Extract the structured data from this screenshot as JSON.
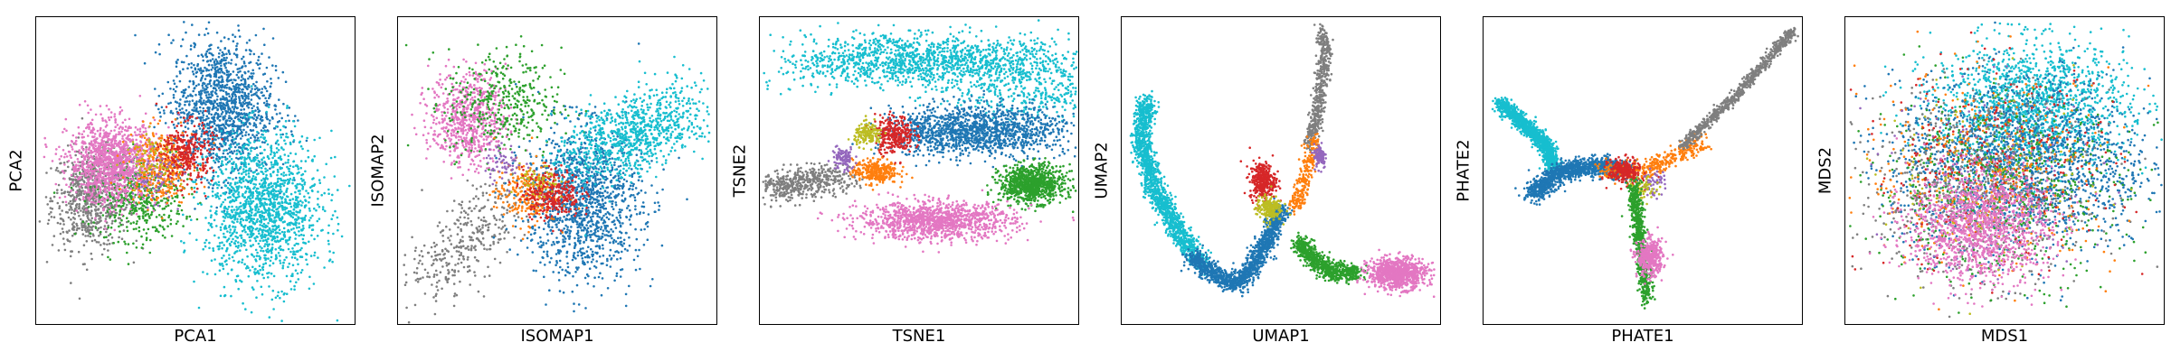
{
  "figure": {
    "colors": {
      "blue": "#1f77b4",
      "cyan": "#17becf",
      "pink": "#e377c2",
      "gray": "#7f7f7f",
      "green": "#2ca02c",
      "orange": "#ff7f0e",
      "red": "#d62728",
      "purple": "#9467bd",
      "olive": "#bcbd22"
    }
  },
  "chart_data": [
    {
      "type": "scatter",
      "xlabel": "PCA1",
      "ylabel": "PCA2",
      "title": "",
      "xticks": [],
      "yticks": [],
      "grid": false,
      "legend": "none",
      "xlim": [
        0,
        1
      ],
      "ylim": [
        0,
        1
      ],
      "clusters": [
        {
          "color": "gray",
          "cx": 0.17,
          "cy": 0.41,
          "sx": 0.06,
          "sy": 0.08,
          "n": 700
        },
        {
          "color": "green",
          "cx": 0.32,
          "cy": 0.42,
          "sx": 0.07,
          "sy": 0.07,
          "n": 500
        },
        {
          "color": "blue",
          "cx": 0.58,
          "cy": 0.71,
          "sx": 0.08,
          "sy": 0.11,
          "n": 1300
        },
        {
          "color": "cyan",
          "cx": 0.71,
          "cy": 0.38,
          "sx": 0.09,
          "sy": 0.12,
          "n": 1500
        },
        {
          "color": "pink",
          "cx": 0.24,
          "cy": 0.53,
          "sx": 0.07,
          "sy": 0.065,
          "n": 1200
        },
        {
          "color": "orange",
          "cx": 0.39,
          "cy": 0.52,
          "sx": 0.05,
          "sy": 0.06,
          "n": 350
        },
        {
          "color": "red",
          "cx": 0.47,
          "cy": 0.56,
          "sx": 0.04,
          "sy": 0.05,
          "n": 300
        },
        {
          "color": "purple",
          "cx": 0.37,
          "cy": 0.47,
          "sx": 0.04,
          "sy": 0.05,
          "n": 60
        },
        {
          "color": "olive",
          "cx": 0.36,
          "cy": 0.55,
          "sx": 0.04,
          "sy": 0.04,
          "n": 60
        }
      ]
    },
    {
      "type": "scatter",
      "xlabel": "ISOMAP1",
      "ylabel": "ISOMAP2",
      "title": "",
      "xticks": [],
      "yticks": [],
      "grid": false,
      "legend": "none",
      "xlim": [
        0,
        1
      ],
      "ylim": [
        0,
        1
      ],
      "clusters": [
        {
          "color": "pink",
          "cx": 0.22,
          "cy": 0.67,
          "sx": 0.06,
          "sy": 0.075,
          "n": 700
        },
        {
          "color": "green",
          "cx": 0.33,
          "cy": 0.72,
          "sx": 0.09,
          "sy": 0.09,
          "n": 400
        },
        {
          "color": "gray",
          "cx": 0.18,
          "cy": 0.26,
          "sx": 0.055,
          "sy": 0.055,
          "n": 350,
          "path": [
            [
              0.08,
              0.14
            ],
            [
              0.2,
              0.26
            ],
            [
              0.32,
              0.4
            ]
          ]
        },
        {
          "color": "blue",
          "cx": 0.58,
          "cy": 0.4,
          "sx": 0.09,
          "sy": 0.12,
          "n": 1300
        },
        {
          "color": "cyan",
          "cx": 0.75,
          "cy": 0.62,
          "sx": 0.07,
          "sy": 0.055,
          "n": 900,
          "path": [
            [
              0.6,
              0.54
            ],
            [
              0.72,
              0.62
            ],
            [
              0.88,
              0.7
            ]
          ]
        },
        {
          "color": "orange",
          "cx": 0.4,
          "cy": 0.43,
          "sx": 0.05,
          "sy": 0.05,
          "n": 250
        },
        {
          "color": "red",
          "cx": 0.48,
          "cy": 0.43,
          "sx": 0.045,
          "sy": 0.04,
          "n": 300
        },
        {
          "color": "purple",
          "cx": 0.33,
          "cy": 0.53,
          "sx": 0.03,
          "sy": 0.03,
          "n": 60
        },
        {
          "color": "olive",
          "cx": 0.44,
          "cy": 0.46,
          "sx": 0.03,
          "sy": 0.03,
          "n": 50
        }
      ]
    },
    {
      "type": "scatter",
      "xlabel": "TSNE1",
      "ylabel": "TSNE2",
      "title": "",
      "xticks": [],
      "yticks": [],
      "grid": false,
      "legend": "none",
      "xlim": [
        0,
        1
      ],
      "ylim": [
        0,
        1
      ],
      "clusters": [
        {
          "color": "cyan",
          "cx": 0.55,
          "cy": 0.83,
          "sx": 0.16,
          "sy": 0.04,
          "n": 1800,
          "path": [
            [
              0.25,
              0.84
            ],
            [
              0.5,
              0.88
            ],
            [
              0.78,
              0.84
            ],
            [
              0.92,
              0.7
            ]
          ]
        },
        {
          "color": "blue",
          "cx": 0.66,
          "cy": 0.63,
          "sx": 0.08,
          "sy": 0.04,
          "n": 1400,
          "path": [
            [
              0.48,
              0.62
            ],
            [
              0.66,
              0.64
            ],
            [
              0.85,
              0.63
            ]
          ]
        },
        {
          "color": "gray",
          "cx": 0.1,
          "cy": 0.46,
          "sx": 0.045,
          "sy": 0.025,
          "n": 500,
          "path": [
            [
              0.04,
              0.45
            ],
            [
              0.14,
              0.46
            ],
            [
              0.24,
              0.49
            ]
          ]
        },
        {
          "color": "orange",
          "cx": 0.36,
          "cy": 0.5,
          "sx": 0.035,
          "sy": 0.02,
          "n": 300
        },
        {
          "color": "red",
          "cx": 0.42,
          "cy": 0.62,
          "sx": 0.03,
          "sy": 0.03,
          "n": 300
        },
        {
          "color": "olive",
          "cx": 0.34,
          "cy": 0.62,
          "sx": 0.022,
          "sy": 0.018,
          "n": 150
        },
        {
          "color": "purple",
          "cx": 0.26,
          "cy": 0.54,
          "sx": 0.018,
          "sy": 0.02,
          "n": 100
        },
        {
          "color": "green",
          "cx": 0.85,
          "cy": 0.46,
          "sx": 0.05,
          "sy": 0.03,
          "n": 900
        },
        {
          "color": "pink",
          "cx": 0.55,
          "cy": 0.34,
          "sx": 0.12,
          "sy": 0.03,
          "n": 1200
        }
      ]
    },
    {
      "type": "scatter",
      "xlabel": "UMAP1",
      "ylabel": "UMAP2",
      "title": "",
      "xticks": [],
      "yticks": [],
      "grid": false,
      "legend": "none",
      "xlim": [
        0,
        1
      ],
      "ylim": [
        0,
        1
      ],
      "clusters": [
        {
          "color": "cyan",
          "cx": 0.12,
          "cy": 0.55,
          "sx": 0.015,
          "sy": 0.015,
          "n": 1500,
          "path": [
            [
              0.08,
              0.73
            ],
            [
              0.06,
              0.6
            ],
            [
              0.1,
              0.45
            ],
            [
              0.18,
              0.3
            ],
            [
              0.25,
              0.2
            ]
          ]
        },
        {
          "color": "blue",
          "cx": 0.35,
          "cy": 0.22,
          "sx": 0.015,
          "sy": 0.015,
          "n": 1300,
          "path": [
            [
              0.22,
              0.22
            ],
            [
              0.33,
              0.14
            ],
            [
              0.38,
              0.15
            ],
            [
              0.44,
              0.25
            ],
            [
              0.5,
              0.38
            ]
          ]
        },
        {
          "color": "gray",
          "cx": 0.62,
          "cy": 0.75,
          "sx": 0.01,
          "sy": 0.01,
          "n": 500,
          "path": [
            [
              0.59,
              0.58
            ],
            [
              0.62,
              0.75
            ],
            [
              0.64,
              0.9
            ],
            [
              0.62,
              0.96
            ]
          ]
        },
        {
          "color": "orange",
          "cx": 0.58,
          "cy": 0.48,
          "sx": 0.012,
          "sy": 0.012,
          "n": 250,
          "path": [
            [
              0.54,
              0.38
            ],
            [
              0.58,
              0.5
            ],
            [
              0.6,
              0.6
            ]
          ]
        },
        {
          "color": "purple",
          "cx": 0.62,
          "cy": 0.55,
          "sx": 0.01,
          "sy": 0.02,
          "n": 100
        },
        {
          "color": "red",
          "cx": 0.44,
          "cy": 0.47,
          "sx": 0.02,
          "sy": 0.03,
          "n": 350
        },
        {
          "color": "olive",
          "cx": 0.46,
          "cy": 0.38,
          "sx": 0.02,
          "sy": 0.02,
          "n": 200
        },
        {
          "color": "green",
          "cx": 0.66,
          "cy": 0.17,
          "sx": 0.015,
          "sy": 0.015,
          "n": 700,
          "path": [
            [
              0.55,
              0.27
            ],
            [
              0.64,
              0.18
            ],
            [
              0.74,
              0.17
            ]
          ]
        },
        {
          "color": "pink",
          "cx": 0.86,
          "cy": 0.17,
          "sx": 0.045,
          "sy": 0.025,
          "n": 900
        }
      ]
    },
    {
      "type": "scatter",
      "xlabel": "PHATE1",
      "ylabel": "PHATE2",
      "title": "",
      "xticks": [],
      "yticks": [],
      "grid": false,
      "legend": "none",
      "xlim": [
        0,
        1
      ],
      "ylim": [
        0,
        1
      ],
      "clusters": [
        {
          "color": "cyan",
          "cx": 0.15,
          "cy": 0.62,
          "sx": 0.012,
          "sy": 0.012,
          "n": 1200,
          "path": [
            [
              0.05,
              0.72
            ],
            [
              0.12,
              0.66
            ],
            [
              0.2,
              0.58
            ],
            [
              0.22,
              0.5
            ]
          ]
        },
        {
          "color": "blue",
          "cx": 0.28,
          "cy": 0.48,
          "sx": 0.02,
          "sy": 0.015,
          "n": 1200,
          "path": [
            [
              0.15,
              0.42
            ],
            [
              0.24,
              0.5
            ],
            [
              0.35,
              0.52
            ],
            [
              0.45,
              0.5
            ]
          ]
        },
        {
          "color": "orange",
          "cx": 0.45,
          "cy": 0.5,
          "sx": 0.02,
          "sy": 0.015,
          "n": 400,
          "path": [
            [
              0.38,
              0.5
            ],
            [
              0.5,
              0.5
            ],
            [
              0.62,
              0.56
            ],
            [
              0.68,
              0.6
            ]
          ]
        },
        {
          "color": "gray",
          "cx": 0.8,
          "cy": 0.8,
          "sx": 0.008,
          "sy": 0.008,
          "n": 700,
          "path": [
            [
              0.62,
              0.58
            ],
            [
              0.8,
              0.76
            ],
            [
              0.97,
              0.96
            ]
          ]
        },
        {
          "color": "red",
          "cx": 0.44,
          "cy": 0.5,
          "sx": 0.025,
          "sy": 0.02,
          "n": 250
        },
        {
          "color": "purple",
          "cx": 0.53,
          "cy": 0.46,
          "sx": 0.02,
          "sy": 0.02,
          "n": 60
        },
        {
          "color": "olive",
          "cx": 0.5,
          "cy": 0.44,
          "sx": 0.02,
          "sy": 0.02,
          "n": 60
        },
        {
          "color": "green",
          "cx": 0.5,
          "cy": 0.28,
          "sx": 0.01,
          "sy": 0.01,
          "n": 700,
          "path": [
            [
              0.47,
              0.46
            ],
            [
              0.48,
              0.35
            ],
            [
              0.5,
              0.2
            ],
            [
              0.51,
              0.08
            ]
          ]
        },
        {
          "color": "pink",
          "cx": 0.52,
          "cy": 0.22,
          "sx": 0.02,
          "sy": 0.03,
          "n": 400
        }
      ]
    },
    {
      "type": "scatter",
      "xlabel": "MDS1",
      "ylabel": "MDS2",
      "title": "",
      "xticks": [],
      "yticks": [],
      "grid": false,
      "legend": "none",
      "xlim": [
        0,
        1
      ],
      "ylim": [
        0,
        1
      ],
      "clusters": [
        {
          "color": "cyan",
          "cx": 0.58,
          "cy": 0.72,
          "sx": 0.15,
          "sy": 0.1,
          "n": 1500
        },
        {
          "color": "blue",
          "cx": 0.55,
          "cy": 0.52,
          "sx": 0.2,
          "sy": 0.14,
          "n": 1800
        },
        {
          "color": "gray",
          "cx": 0.4,
          "cy": 0.45,
          "sx": 0.18,
          "sy": 0.15,
          "n": 700
        },
        {
          "color": "green",
          "cx": 0.48,
          "cy": 0.45,
          "sx": 0.2,
          "sy": 0.15,
          "n": 600
        },
        {
          "color": "orange",
          "cx": 0.45,
          "cy": 0.5,
          "sx": 0.2,
          "sy": 0.16,
          "n": 400
        },
        {
          "color": "red",
          "cx": 0.45,
          "cy": 0.5,
          "sx": 0.2,
          "sy": 0.16,
          "n": 300
        },
        {
          "color": "purple",
          "cx": 0.45,
          "cy": 0.48,
          "sx": 0.18,
          "sy": 0.15,
          "n": 120
        },
        {
          "color": "olive",
          "cx": 0.45,
          "cy": 0.48,
          "sx": 0.18,
          "sy": 0.15,
          "n": 120
        },
        {
          "color": "pink",
          "cx": 0.42,
          "cy": 0.32,
          "sx": 0.11,
          "sy": 0.09,
          "n": 1300
        }
      ]
    }
  ]
}
